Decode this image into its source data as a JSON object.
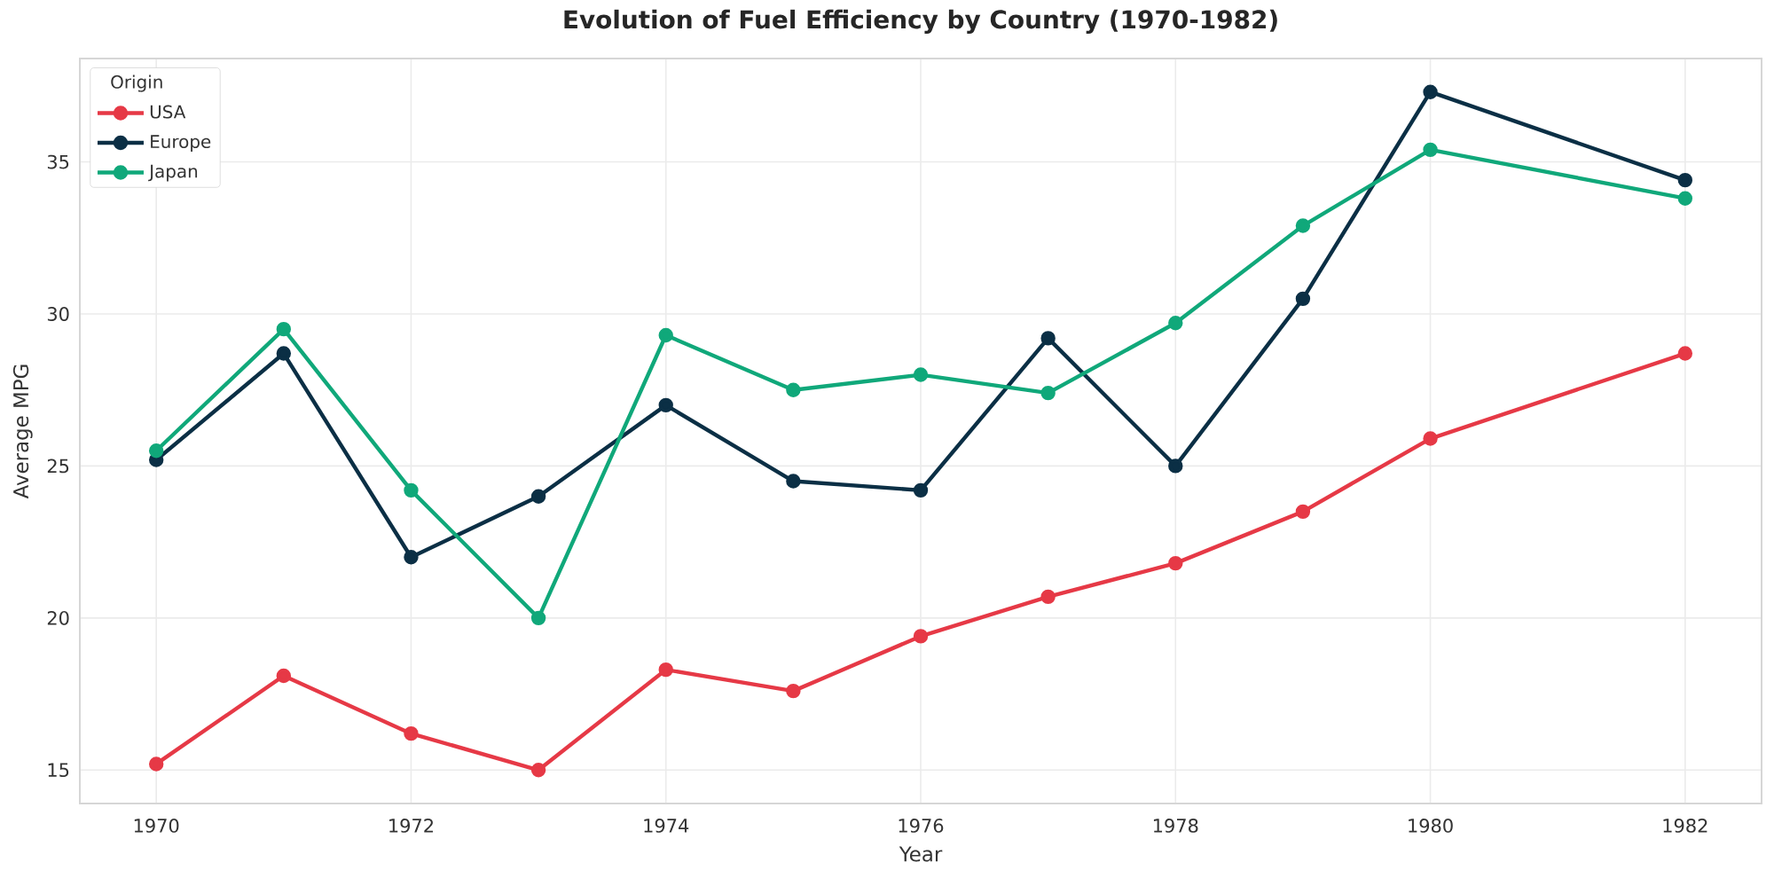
{
  "chart_data": {
    "type": "line",
    "title": "Evolution of Fuel Efficiency by Country (1970-1982)",
    "xlabel": "Year",
    "ylabel": "Average MPG",
    "legend_title": "Origin",
    "x": [
      1970,
      1971,
      1972,
      1973,
      1974,
      1975,
      1976,
      1977,
      1978,
      1979,
      1980,
      1982
    ],
    "series": [
      {
        "name": "USA",
        "color": "#e63946",
        "values": [
          15.2,
          18.1,
          16.2,
          15.0,
          18.3,
          17.6,
          19.4,
          20.7,
          21.8,
          23.5,
          25.9,
          28.7
        ]
      },
      {
        "name": "Europe",
        "color": "#0b2f45",
        "values": [
          25.2,
          28.7,
          22.0,
          24.0,
          27.0,
          24.5,
          24.2,
          29.2,
          25.0,
          30.5,
          37.3,
          34.4
        ]
      },
      {
        "name": "Japan",
        "color": "#10a87a",
        "values": [
          25.5,
          29.5,
          24.2,
          20.0,
          29.3,
          27.5,
          28.0,
          27.4,
          29.7,
          32.9,
          35.4,
          33.8
        ]
      }
    ],
    "xlim": [
      1969.4,
      1982.6
    ],
    "ylim": [
      13.9,
      38.4
    ],
    "xticks": [
      1970,
      1972,
      1974,
      1976,
      1978,
      1980,
      1982
    ],
    "yticks": [
      15,
      20,
      25,
      30,
      35
    ],
    "grid": true,
    "legend": "top left",
    "marker": "circle"
  }
}
